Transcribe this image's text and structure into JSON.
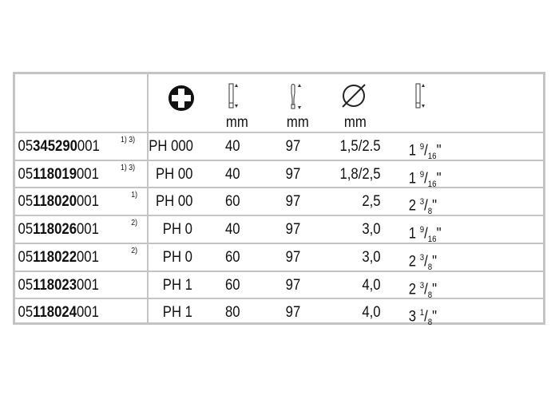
{
  "header": {
    "icons": [
      "phillips-tip-icon",
      "blade-length-icon",
      "overall-length-icon",
      "diameter-icon",
      "blade-length-inch-icon"
    ],
    "units": [
      "mm",
      "mm",
      "mm"
    ]
  },
  "rows": [
    {
      "pre": "05",
      "mid": "345290",
      "post": "001",
      "note": "1) 3)",
      "tip": "PH 000",
      "blade": "40",
      "total": "97",
      "dia": "1,5/2.5",
      "inch_whole": "1",
      "inch_num": "9",
      "inch_den": "16",
      "inch_mark": "\""
    },
    {
      "pre": "05",
      "mid": "118019",
      "post": "001",
      "note": "1) 3)",
      "tip": "PH 00",
      "blade": "40",
      "total": "97",
      "dia": "1,8/2,5",
      "inch_whole": "1",
      "inch_num": "9",
      "inch_den": "16",
      "inch_mark": "\""
    },
    {
      "pre": "05",
      "mid": "118020",
      "post": "001",
      "note": "1)",
      "tip": "PH 00",
      "blade": "60",
      "total": "97",
      "dia": "2,5",
      "inch_whole": "2",
      "inch_num": "3",
      "inch_den": "8",
      "inch_mark": "\""
    },
    {
      "pre": "05",
      "mid": "118026",
      "post": "001",
      "note": "2)",
      "tip": "PH 0",
      "blade": "40",
      "total": "97",
      "dia": "3,0",
      "inch_whole": "1",
      "inch_num": "9",
      "inch_den": "16",
      "inch_mark": "\""
    },
    {
      "pre": "05",
      "mid": "118022",
      "post": "001",
      "note": "2)",
      "tip": "PH 0",
      "blade": "60",
      "total": "97",
      "dia": "3,0",
      "inch_whole": "2",
      "inch_num": "3",
      "inch_den": "8",
      "inch_mark": "\""
    },
    {
      "pre": "05",
      "mid": "118023",
      "post": "001",
      "note": "",
      "tip": "PH 1",
      "blade": "60",
      "total": "97",
      "dia": "4,0",
      "inch_whole": "2",
      "inch_num": "3",
      "inch_den": "8",
      "inch_mark": "\""
    },
    {
      "pre": "05",
      "mid": "118024",
      "post": "001",
      "note": "",
      "tip": "PH 1",
      "blade": "80",
      "total": "97",
      "dia": "4,0",
      "inch_whole": "3",
      "inch_num": "1",
      "inch_den": "8",
      "inch_mark": "\""
    }
  ]
}
